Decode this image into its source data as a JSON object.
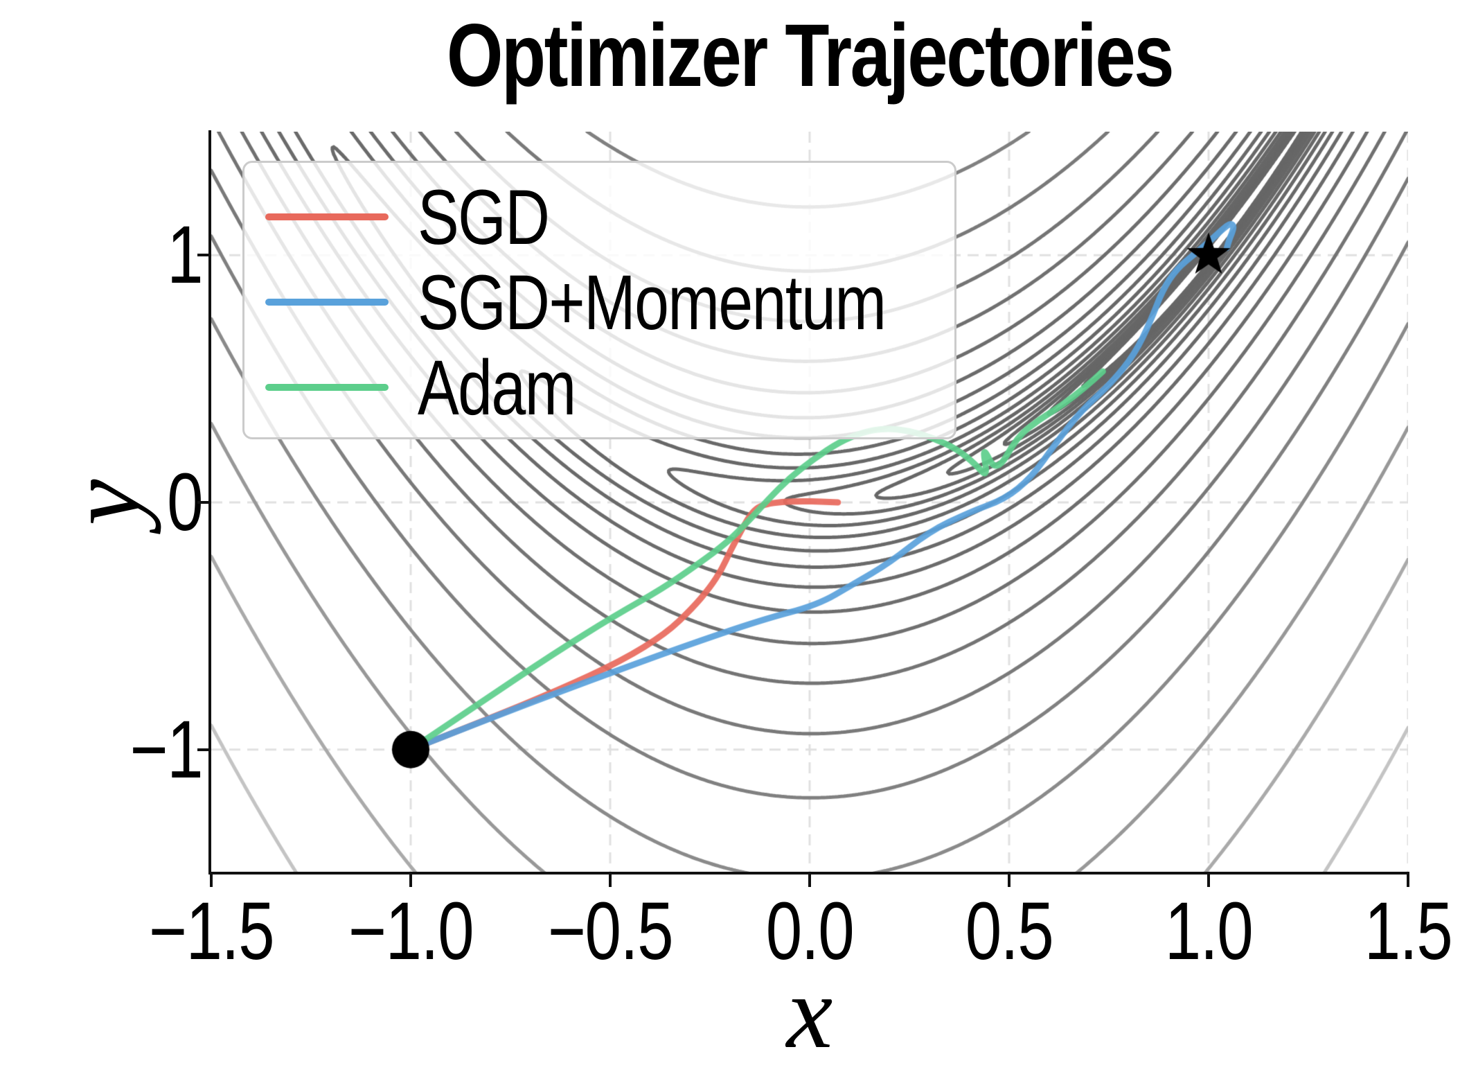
{
  "chart_data": {
    "type": "line",
    "title": "Optimizer Trajectories",
    "xlabel": "x",
    "ylabel": "y",
    "xlim": [
      -1.5,
      1.5
    ],
    "ylim": [
      -1.5,
      1.5
    ],
    "grid": true,
    "grid_style": "dashed",
    "legend_position": "upper left",
    "x_tick_values": [
      -1.5,
      -1.0,
      -0.5,
      0.0,
      0.5,
      1.0,
      1.5
    ],
    "x_tick_labels": [
      "−1.5",
      "−1.0",
      "−0.5",
      "0.0",
      "0.5",
      "1.0",
      "1.5"
    ],
    "y_tick_values": [
      1,
      0,
      -1
    ],
    "y_tick_labels": [
      "1",
      "0",
      "−1"
    ],
    "contour": {
      "function": "rosenbrock",
      "formula": "(1-x)^2 + 100*(y-x^2)^2",
      "n_levels": 20,
      "levels_log10_min": -1,
      "levels_log10_max": 3,
      "colormap": "gray",
      "line_width": 5
    },
    "start_point": {
      "x": -1.0,
      "y": -1.0,
      "marker": "circle",
      "color": "#000000",
      "radius_px": 27
    },
    "optimum_point": {
      "x": 1.0,
      "y": 1.0,
      "marker": "star",
      "color": "#000000",
      "outer_radius_px": 33
    },
    "series": [
      {
        "name": "SGD",
        "color": "#e8695c",
        "points": [
          [
            -1.0,
            -1.0
          ],
          [
            -0.82,
            -0.885
          ],
          [
            -0.63,
            -0.76
          ],
          [
            -0.47,
            -0.64
          ],
          [
            -0.36,
            -0.53
          ],
          [
            -0.295,
            -0.43
          ],
          [
            -0.25,
            -0.345
          ],
          [
            -0.22,
            -0.27
          ],
          [
            -0.2,
            -0.2
          ],
          [
            -0.175,
            -0.125
          ],
          [
            -0.155,
            -0.065
          ],
          [
            -0.135,
            -0.025
          ],
          [
            -0.11,
            -0.007
          ],
          [
            -0.07,
            0.002
          ],
          [
            -0.02,
            0.005
          ],
          [
            0.03,
            0.003
          ],
          [
            0.071,
            0.0
          ]
        ]
      },
      {
        "name": "SGD+Momentum",
        "color": "#59a1db",
        "points": [
          [
            -1.0,
            -1.0
          ],
          [
            -0.78,
            -0.86
          ],
          [
            -0.55,
            -0.72
          ],
          [
            -0.32,
            -0.585
          ],
          [
            -0.12,
            -0.475
          ],
          [
            0.02,
            -0.415
          ],
          [
            0.11,
            -0.33
          ],
          [
            0.2,
            -0.245
          ],
          [
            0.3,
            -0.118
          ],
          [
            0.4,
            -0.04
          ],
          [
            0.49,
            0.014
          ],
          [
            0.555,
            0.1
          ],
          [
            0.615,
            0.235
          ],
          [
            0.68,
            0.37
          ],
          [
            0.755,
            0.48
          ],
          [
            0.815,
            0.6
          ],
          [
            0.855,
            0.735
          ],
          [
            0.885,
            0.86
          ],
          [
            0.92,
            0.945
          ],
          [
            0.965,
            1.005
          ],
          [
            1.005,
            1.06
          ],
          [
            1.035,
            1.105
          ],
          [
            1.055,
            1.13
          ],
          [
            1.065,
            1.115
          ],
          [
            1.052,
            1.065
          ],
          [
            1.046,
            1.03
          ]
        ]
      },
      {
        "name": "Adam",
        "color": "#5cce8b",
        "points": [
          [
            -1.0,
            -1.0
          ],
          [
            -0.82,
            -0.805
          ],
          [
            -0.64,
            -0.61
          ],
          [
            -0.49,
            -0.46
          ],
          [
            -0.37,
            -0.35
          ],
          [
            -0.28,
            -0.25
          ],
          [
            -0.205,
            -0.16
          ],
          [
            -0.15,
            -0.07
          ],
          [
            -0.105,
            0.01
          ],
          [
            -0.05,
            0.1
          ],
          [
            0.01,
            0.175
          ],
          [
            0.075,
            0.245
          ],
          [
            0.135,
            0.285
          ],
          [
            0.19,
            0.3
          ],
          [
            0.25,
            0.29
          ],
          [
            0.31,
            0.26
          ],
          [
            0.37,
            0.215
          ],
          [
            0.415,
            0.155
          ],
          [
            0.447,
            0.098
          ],
          [
            0.432,
            0.235
          ],
          [
            0.468,
            0.115
          ],
          [
            0.52,
            0.265
          ],
          [
            0.575,
            0.335
          ],
          [
            0.635,
            0.395
          ],
          [
            0.69,
            0.465
          ],
          [
            0.735,
            0.53
          ]
        ]
      }
    ]
  }
}
